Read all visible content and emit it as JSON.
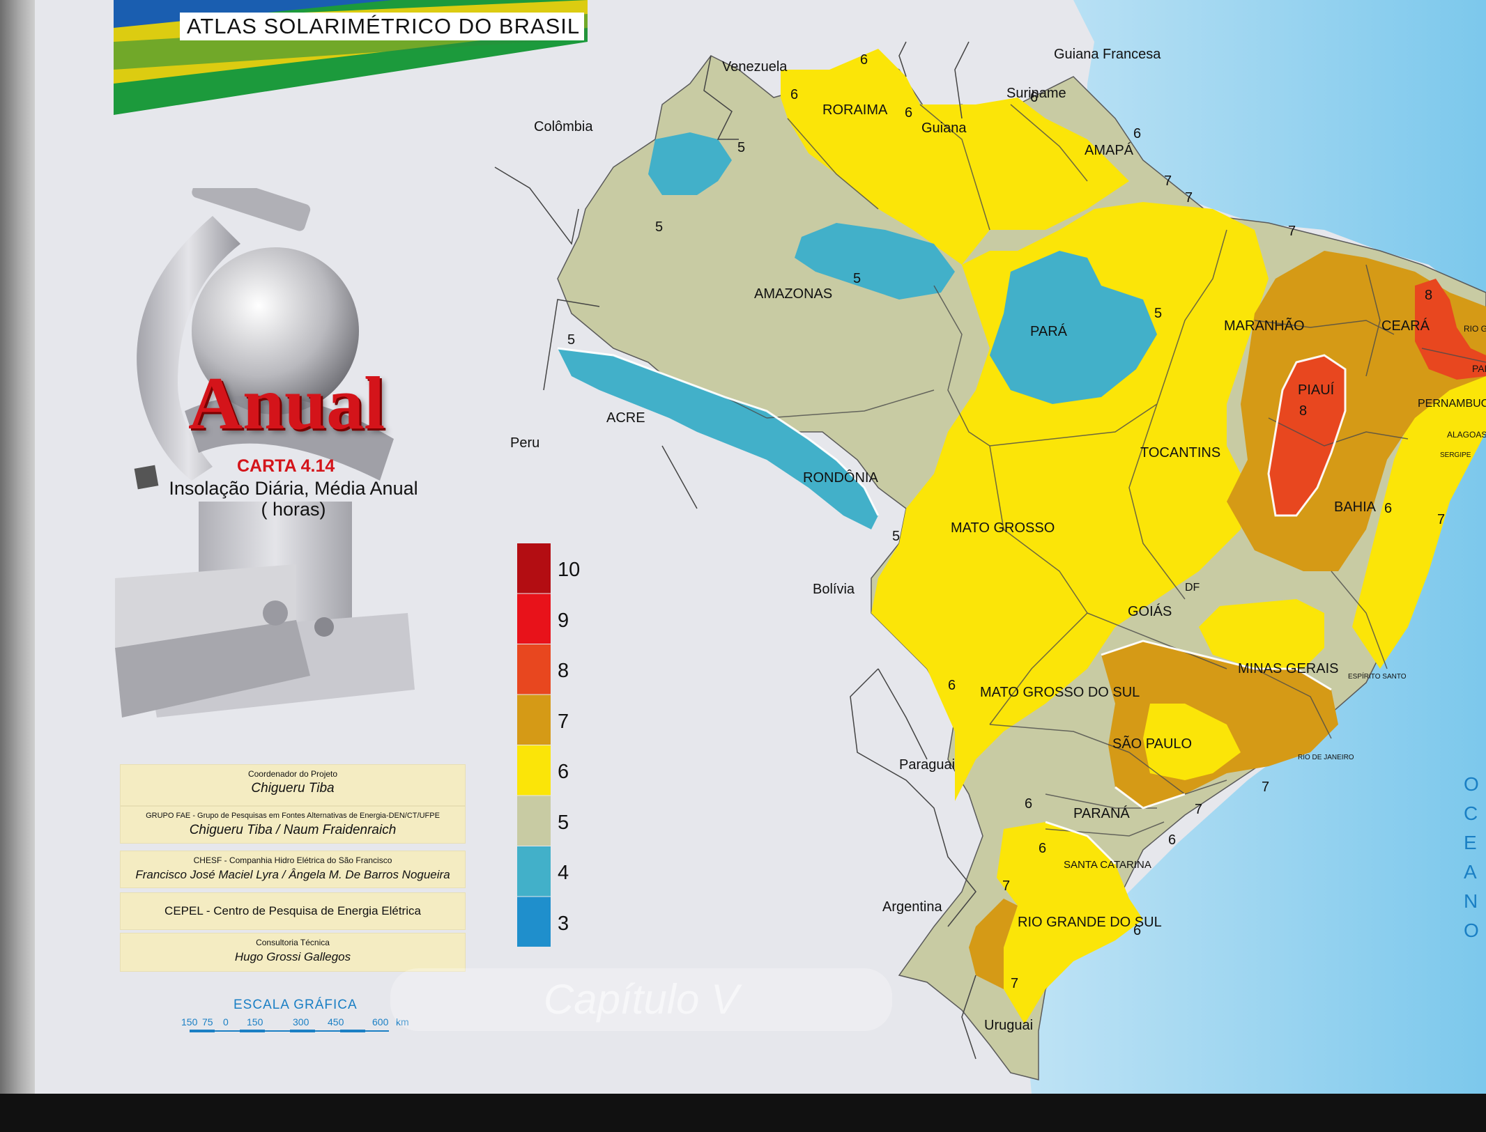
{
  "header": {
    "atlas_title": "ATLAS SOLARIMÉTRICO DO BRASIL"
  },
  "title": {
    "main": "Anual",
    "carta": "CARTA 4.14",
    "description": "Insolação  Diária, Média Anual",
    "unit": "( horas)"
  },
  "credits": [
    {
      "role": "Coordenador do Projeto",
      "names": "Chigueru  Tiba"
    },
    {
      "role": "GRUPO  FAE - Grupo de Pesquisas em Fontes Alternativas de Energia-DEN/CT/UFPE",
      "names": "Chigueru Tiba /   Naum  Fraidenraich"
    },
    {
      "role": "CHESF  -  Companhia Hidro Elétrica do São Francisco",
      "names": "Francisco José Maciel Lyra / Ângela M. De Barros Nogueira"
    },
    {
      "role": "CEPEL - Centro de Pesquisa de Energia Elétrica",
      "names": ""
    },
    {
      "role": "Consultoria Técnica",
      "names": "Hugo  Grossi Gallegos"
    }
  ],
  "legend": {
    "classes": [
      {
        "value": "10",
        "color": "#b30d12"
      },
      {
        "value": "9",
        "color": "#e8121a"
      },
      {
        "value": "8",
        "color": "#e8471f"
      },
      {
        "value": "7",
        "color": "#d59a16"
      },
      {
        "value": "6",
        "color": "#fbe508"
      },
      {
        "value": "5",
        "color": "#c8cba3"
      },
      {
        "value": "4",
        "color": "#42b0c9"
      },
      {
        "value": "3",
        "color": "#1f8fcc"
      }
    ]
  },
  "scale": {
    "title": "ESCALA  GRÁFICA",
    "ticks": [
      "150",
      "75",
      "0",
      "150",
      "300",
      "450",
      "600"
    ],
    "unit": "km"
  },
  "countries": [
    "Venezuela",
    "Guiana Francesa",
    "Suriname",
    "Guiana",
    "Colômbia",
    "Peru",
    "Bolívia",
    "Paraguai",
    "Argentina",
    "Uruguai"
  ],
  "states": [
    "RORAIMA",
    "AMAPÁ",
    "AMAZONAS",
    "PARÁ",
    "MARANHÃO",
    "CEARÁ",
    "RIO GRANDE DO NORTE",
    "PARAÍBA",
    "PERNAMBUCO",
    "ALAGOAS",
    "SERGIPE",
    "PIAUÍ",
    "ACRE",
    "RONDÔNIA",
    "TOCANTINS",
    "BAHIA",
    "MATO GROSSO",
    "DF",
    "GOIÁS",
    "MINAS  GERAIS",
    "ESPÍRITO SANTO",
    "MATO  GROSSO DO SUL",
    "SÃO  PAULO",
    "RIO DE JANEIRO",
    "PARANÁ",
    "SANTA CATARINA",
    "RIO GRANDE DO SUL"
  ],
  "ocean_label": "OCEANO",
  "watermark": "Capítulo V",
  "colors": {
    "sea": "#8fd0ee",
    "iso3": "#1f8fcc",
    "iso4": "#42b0c9",
    "iso5": "#c8cba3",
    "iso6": "#fbe508",
    "iso7": "#d59a16",
    "iso8": "#e8471f",
    "border": "#3a3a3a"
  }
}
